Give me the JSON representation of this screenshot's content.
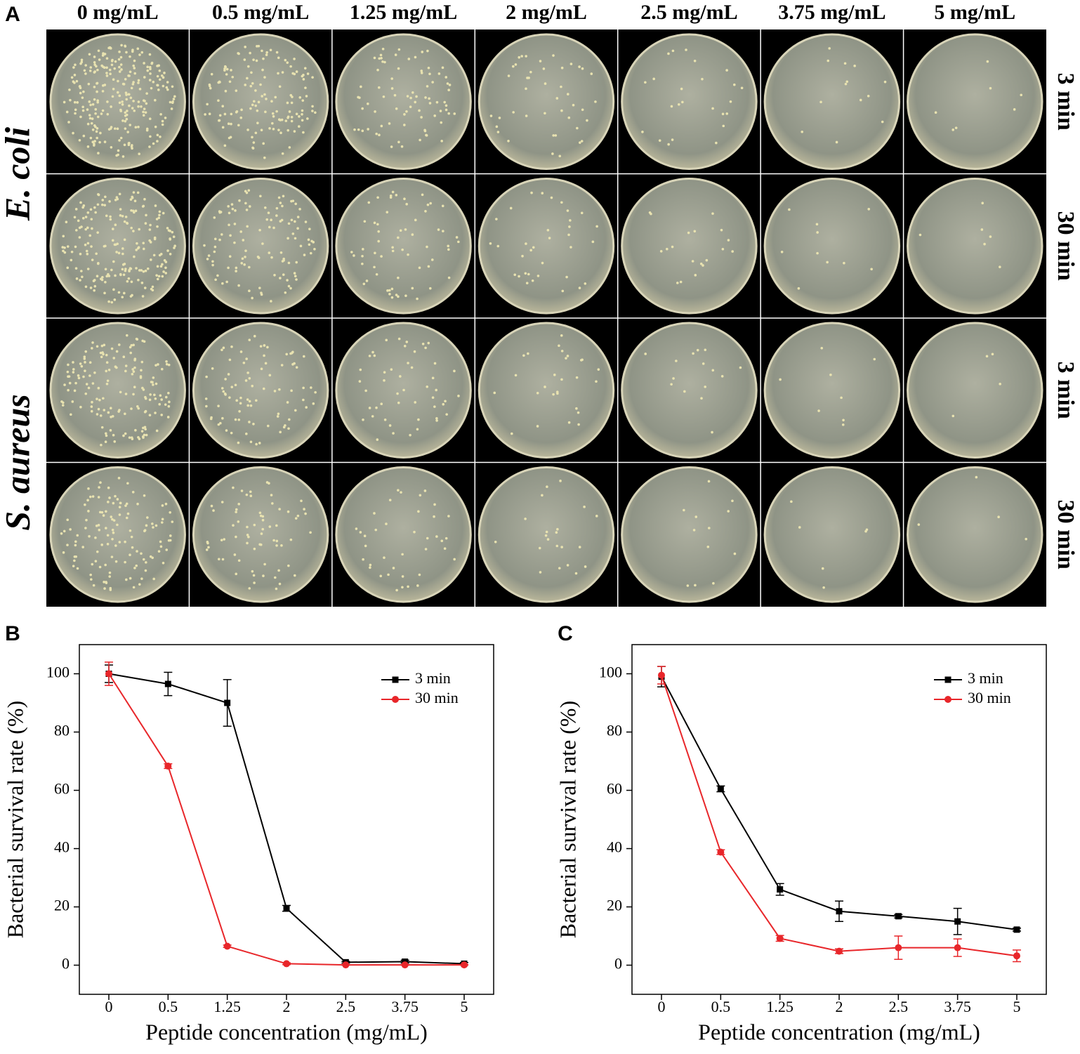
{
  "panel_a": {
    "label": "A",
    "columns": [
      "0 mg/mL",
      "0.5 mg/mL",
      "1.25 mg/mL",
      "2 mg/mL",
      "2.5 mg/mL",
      "3.75 mg/mL",
      "5 mg/mL"
    ],
    "row_groups": [
      {
        "label": "E. coli",
        "times": [
          "3 min",
          "30 min"
        ]
      },
      {
        "label": "S. aureus",
        "times": [
          "3 min",
          "30 min"
        ]
      }
    ]
  },
  "chart_data": [
    {
      "type": "line",
      "panel": "B",
      "x_label": "Peptide concentration (mg/mL)",
      "y_label": "Bacterial survival rate (%)",
      "categories": [
        "0",
        "0.5",
        "1.25",
        "2",
        "2.5",
        "3.75",
        "5"
      ],
      "ylim": [
        -10,
        110
      ],
      "yticks": [
        0,
        20,
        40,
        60,
        80,
        100
      ],
      "legend": "top-right",
      "series": [
        {
          "name": "3 min",
          "color": "#000000",
          "marker": "square",
          "values": [
            100,
            96.5,
            90,
            19.5,
            1,
            1.2,
            0.5
          ],
          "errors": [
            3,
            4,
            8,
            1,
            0.3,
            0.5,
            0.4
          ]
        },
        {
          "name": "30 min",
          "color": "#e8262a",
          "marker": "circle",
          "values": [
            100,
            68.3,
            6.5,
            0.5,
            0.1,
            0.1,
            0.1
          ],
          "errors": [
            4,
            0.8,
            0.4,
            0.3,
            0.1,
            0.1,
            0.1
          ]
        }
      ]
    },
    {
      "type": "line",
      "panel": "C",
      "x_label": "Peptide concentration (mg/mL)",
      "y_label": "Bacterial survival rate (%)",
      "categories": [
        "0",
        "0.5",
        "1.25",
        "2",
        "2.5",
        "3.75",
        "5"
      ],
      "ylim": [
        -10,
        110
      ],
      "yticks": [
        0,
        20,
        40,
        60,
        80,
        100
      ],
      "legend": "top-right",
      "series": [
        {
          "name": "3 min",
          "color": "#000000",
          "marker": "square",
          "values": [
            99,
            60.5,
            26,
            18.5,
            16.8,
            15,
            12.2
          ],
          "errors": [
            3.5,
            1,
            2,
            3.5,
            0.6,
            4.5,
            0.5
          ]
        },
        {
          "name": "30 min",
          "color": "#e8262a",
          "marker": "circle",
          "values": [
            99.5,
            38.8,
            9.2,
            4.8,
            6,
            6,
            3.2
          ],
          "errors": [
            3,
            0.8,
            1,
            0.8,
            4,
            3,
            2
          ]
        }
      ]
    }
  ]
}
